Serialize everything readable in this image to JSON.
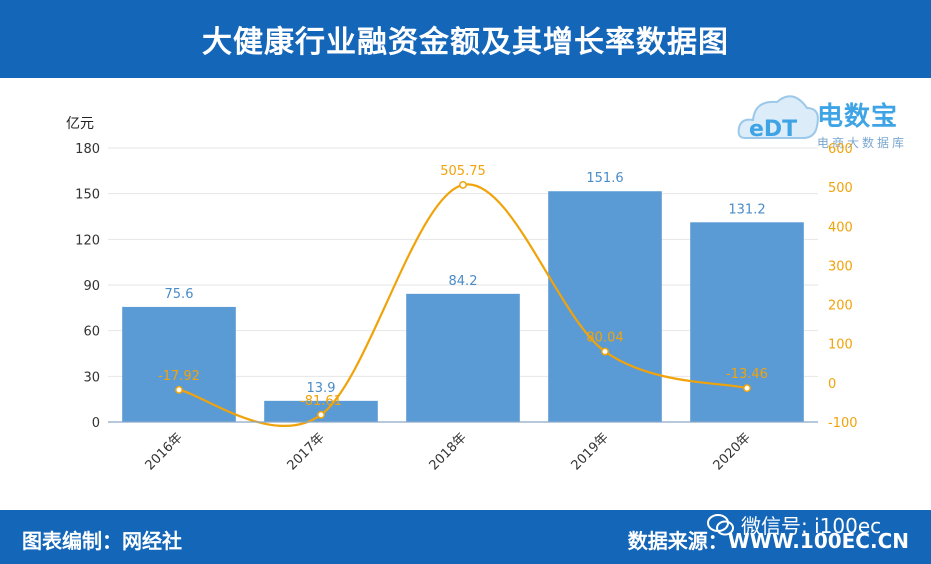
{
  "header": {
    "title": "大健康行业融资金额及其增长率数据图"
  },
  "footer": {
    "left_text": "图表编制：网经社",
    "right_text": "数据来源：WWW.100EC.CN",
    "wechat_text": "微信号: i100ec"
  },
  "logo": {
    "brand": "电数宝",
    "sub": "电商大数据库",
    "icon": "cloud-logo-icon"
  },
  "colors": {
    "bar": "#5b9bd5",
    "line": "#f0a30a",
    "header": "#1466b8"
  },
  "chart_data": {
    "type": "bar",
    "categories": [
      "2016年",
      "2017年",
      "2018年",
      "2019年",
      "2020年"
    ],
    "series": [
      {
        "type": "bar",
        "axis": "left",
        "values": [
          75.6,
          13.9,
          84.2,
          151.6,
          131.2
        ]
      },
      {
        "type": "line",
        "axis": "right",
        "values": [
          -17.92,
          -81.61,
          505.75,
          80.04,
          -13.46
        ]
      }
    ],
    "y_unit": "亿元",
    "y_left": {
      "min": 0,
      "max": 180,
      "ticks": [
        0,
        30,
        60,
        90,
        120,
        150,
        180
      ]
    },
    "y_right": {
      "min": -100,
      "max": 600,
      "ticks": [
        -100,
        0,
        100,
        200,
        300,
        400,
        500,
        600
      ]
    },
    "grid": true
  }
}
